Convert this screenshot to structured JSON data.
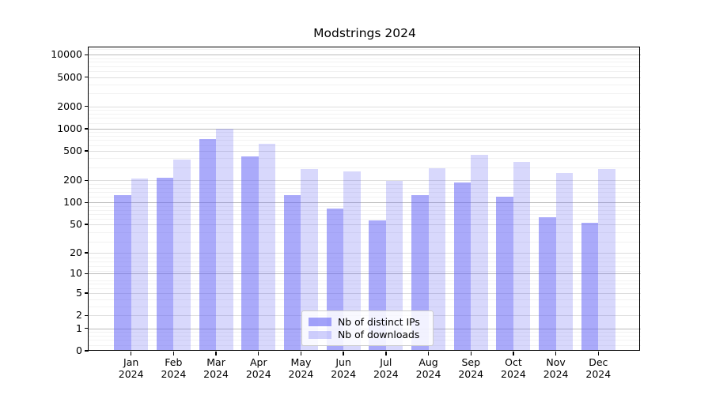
{
  "title": "Modstrings 2024",
  "chart_data": {
    "type": "bar",
    "title": "Modstrings 2024",
    "y_scale": "log10(1+x)",
    "y_ticks": [
      0,
      1,
      2,
      5,
      10,
      20,
      50,
      100,
      200,
      500,
      1000,
      2000,
      5000,
      10000
    ],
    "ylim": [
      0,
      12800
    ],
    "grid": true,
    "legend_position": "lower center",
    "categories": [
      {
        "month": "Jan",
        "year": "2024"
      },
      {
        "month": "Feb",
        "year": "2024"
      },
      {
        "month": "Mar",
        "year": "2024"
      },
      {
        "month": "Apr",
        "year": "2024"
      },
      {
        "month": "May",
        "year": "2024"
      },
      {
        "month": "Jun",
        "year": "2024"
      },
      {
        "month": "Jul",
        "year": "2024"
      },
      {
        "month": "Aug",
        "year": "2024"
      },
      {
        "month": "Sep",
        "year": "2024"
      },
      {
        "month": "Oct",
        "year": "2024"
      },
      {
        "month": "Nov",
        "year": "2024"
      },
      {
        "month": "Dec",
        "year": "2024"
      }
    ],
    "series": [
      {
        "name": "Nb of distinct IPs",
        "color": "#6464f5",
        "opacity": 0.55,
        "values": [
          126,
          217,
          727,
          422,
          126,
          82,
          57,
          126,
          187,
          119,
          62,
          53
        ]
      },
      {
        "name": "Nb of downloads",
        "color": "#6464f5",
        "opacity": 0.25,
        "values": [
          210,
          380,
          1000,
          627,
          282,
          262,
          198,
          294,
          440,
          355,
          254,
          282
        ]
      }
    ],
    "grid_colors": {
      "major": "#bbbbbb",
      "labeled": "#dddddd",
      "minor": "#f2f2f2"
    }
  }
}
